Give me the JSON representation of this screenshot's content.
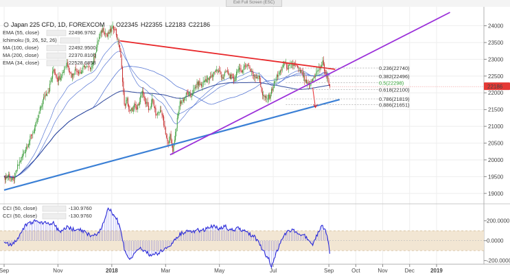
{
  "window": {
    "exit_fullscreen_label": "Exit Full Screen (ESC)"
  },
  "header": {
    "symbol": "Japan 225 CFD, 1D, FOREXCOM",
    "ohlc": [
      {
        "key": "O",
        "value": "22345"
      },
      {
        "key": "H",
        "value": "22355"
      },
      {
        "key": "L",
        "value": "22183"
      },
      {
        "key": "C",
        "value": "22186"
      }
    ]
  },
  "indicators": [
    {
      "label": "EMA (55, close)",
      "value": "22496.9762",
      "color": "#3a5fcd"
    },
    {
      "label": "Ichimoku (9, 26, 52, 26)",
      "value": "",
      "color": "#8a8a8a"
    },
    {
      "label": "MA (100, close)",
      "value": "22492.9500",
      "color": "#3a5fcd"
    },
    {
      "label": "MA (200, close)",
      "value": "22370.8100",
      "color": "#1f3a93"
    },
    {
      "label": "EMA (34, close)",
      "value": "22528.6858",
      "color": "#3a5fcd"
    }
  ],
  "cci_legend": [
    {
      "label": "CCI (50, close)",
      "value": "-130.9760"
    },
    {
      "label": "CCI (50, close)",
      "value": "-130.9760"
    }
  ],
  "last_price_label": "22186",
  "colors": {
    "up": "#3d9e3d",
    "down": "#c62828",
    "downtrend_line": "#e8272a",
    "channel_line": "#9b30d9",
    "support_line": "#3a7fd5",
    "ma_line": "#3a5fcd",
    "cci_line": "#2b2bd9",
    "cci_band": "#f2e6d3",
    "price_badge": "#e53935"
  },
  "chart_data": {
    "type": "line",
    "title": "Japan 225 CFD, 1D, FOREXCOM",
    "x_axis": {
      "tick_labels": [
        "Sep",
        "Nov",
        "2018",
        "Mar",
        "May",
        "Jul",
        "Sep",
        "Oct",
        "Nov",
        "Dec",
        "2019"
      ],
      "tick_index": [
        0,
        60,
        120,
        180,
        240,
        300,
        362,
        392,
        422,
        452,
        482
      ]
    },
    "price_axis": {
      "ticks": [
        19000,
        19500,
        20000,
        20500,
        21000,
        21500,
        22000,
        22500,
        23000,
        23500,
        24000
      ],
      "range": [
        18750,
        24400
      ]
    },
    "close_path": [
      [
        0,
        19450
      ],
      [
        5,
        19550
      ],
      [
        10,
        19350
      ],
      [
        15,
        19800
      ],
      [
        20,
        20100
      ],
      [
        25,
        20400
      ],
      [
        30,
        20700
      ],
      [
        35,
        21000
      ],
      [
        40,
        21500
      ],
      [
        45,
        21900
      ],
      [
        50,
        22100
      ],
      [
        55,
        22700
      ],
      [
        60,
        22400
      ],
      [
        65,
        22600
      ],
      [
        70,
        22900
      ],
      [
        75,
        22500
      ],
      [
        80,
        22700
      ],
      [
        85,
        22600
      ],
      [
        90,
        22800
      ],
      [
        95,
        22700
      ],
      [
        100,
        23000
      ],
      [
        105,
        23600
      ],
      [
        110,
        23900
      ],
      [
        115,
        23700
      ],
      [
        120,
        23900
      ],
      [
        123,
        23950
      ],
      [
        126,
        23650
      ],
      [
        129,
        23300
      ],
      [
        132,
        22400
      ],
      [
        134,
        21600
      ],
      [
        137,
        21800
      ],
      [
        140,
        21400
      ],
      [
        145,
        21600
      ],
      [
        148,
        21500
      ],
      [
        151,
        21800
      ],
      [
        154,
        22000
      ],
      [
        158,
        21700
      ],
      [
        162,
        21500
      ],
      [
        165,
        21800
      ],
      [
        170,
        21300
      ],
      [
        175,
        21500
      ],
      [
        179,
        20900
      ],
      [
        182,
        20500
      ],
      [
        185,
        20700
      ],
      [
        188,
        20300
      ],
      [
        192,
        21000
      ],
      [
        196,
        21700
      ],
      [
        200,
        21800
      ],
      [
        204,
        22000
      ],
      [
        208,
        21900
      ],
      [
        212,
        22100
      ],
      [
        216,
        22300
      ],
      [
        220,
        22200
      ],
      [
        224,
        22400
      ],
      [
        228,
        22400
      ],
      [
        232,
        22500
      ],
      [
        236,
        22700
      ],
      [
        240,
        22600
      ],
      [
        244,
        22450
      ],
      [
        248,
        22650
      ],
      [
        252,
        22500
      ],
      [
        256,
        22350
      ],
      [
        260,
        22700
      ],
      [
        264,
        22650
      ],
      [
        268,
        22800
      ],
      [
        272,
        22850
      ],
      [
        276,
        22600
      ],
      [
        280,
        22500
      ],
      [
        284,
        22450
      ],
      [
        288,
        21950
      ],
      [
        292,
        21800
      ],
      [
        296,
        21900
      ],
      [
        300,
        22200
      ],
      [
        304,
        22500
      ],
      [
        308,
        22600
      ],
      [
        312,
        22900
      ],
      [
        316,
        22750
      ],
      [
        320,
        22800
      ],
      [
        324,
        22850
      ],
      [
        328,
        22700
      ],
      [
        332,
        22600
      ],
      [
        336,
        22300
      ],
      [
        340,
        22200
      ],
      [
        344,
        22400
      ],
      [
        348,
        22600
      ],
      [
        352,
        22750
      ],
      [
        355,
        22900
      ],
      [
        357,
        22700
      ],
      [
        359,
        22500
      ],
      [
        361,
        22400
      ],
      [
        363,
        22186
      ]
    ],
    "downtrend_line": {
      "from": [
        129,
        23550
      ],
      "to": [
        369,
        22700
      ]
    },
    "support_line": {
      "from": [
        0,
        19100
      ],
      "to": [
        374,
        21800
      ]
    },
    "rising_channel_line": {
      "from": [
        185,
        20150
      ],
      "to": [
        497,
        24400
      ]
    },
    "fib_retracement": [
      {
        "ratio": "0.236",
        "price": 22740
      },
      {
        "ratio": "0.382",
        "price": 22496
      },
      {
        "ratio": "0.5",
        "price": 22298
      },
      {
        "ratio": "0.618",
        "price": 22100
      },
      {
        "ratio": "0.786",
        "price": 21819
      },
      {
        "ratio": "0.886",
        "price": 21651
      }
    ],
    "last_price": 22186,
    "cci": {
      "name": "CCI (50, close)",
      "ticks": [
        200,
        0,
        -200
      ],
      "tick_labels": [
        "200.0000",
        "0.0000",
        "-200.0000"
      ],
      "band": [
        100,
        -100
      ],
      "range": [
        -230,
        350
      ],
      "path": [
        [
          0,
          0
        ],
        [
          8,
          -50
        ],
        [
          15,
          20
        ],
        [
          20,
          110
        ],
        [
          25,
          160
        ],
        [
          30,
          180
        ],
        [
          35,
          200
        ],
        [
          40,
          170
        ],
        [
          45,
          190
        ],
        [
          50,
          160
        ],
        [
          55,
          180
        ],
        [
          60,
          110
        ],
        [
          65,
          90
        ],
        [
          70,
          140
        ],
        [
          75,
          120
        ],
        [
          80,
          100
        ],
        [
          85,
          110
        ],
        [
          90,
          90
        ],
        [
          95,
          60
        ],
        [
          100,
          50
        ],
        [
          105,
          80
        ],
        [
          110,
          160
        ],
        [
          113,
          240
        ],
        [
          116,
          330
        ],
        [
          119,
          300
        ],
        [
          122,
          250
        ],
        [
          125,
          230
        ],
        [
          128,
          160
        ],
        [
          131,
          60
        ],
        [
          134,
          -80
        ],
        [
          137,
          -140
        ],
        [
          140,
          -200
        ],
        [
          143,
          -150
        ],
        [
          146,
          -120
        ],
        [
          150,
          -80
        ],
        [
          154,
          -90
        ],
        [
          158,
          -100
        ],
        [
          162,
          -150
        ],
        [
          166,
          -120
        ],
        [
          170,
          -140
        ],
        [
          175,
          -100
        ],
        [
          180,
          -80
        ],
        [
          185,
          -70
        ],
        [
          190,
          10
        ],
        [
          195,
          60
        ],
        [
          200,
          80
        ],
        [
          205,
          100
        ],
        [
          210,
          80
        ],
        [
          215,
          110
        ],
        [
          220,
          90
        ],
        [
          225,
          120
        ],
        [
          230,
          150
        ],
        [
          235,
          140
        ],
        [
          240,
          110
        ],
        [
          245,
          150
        ],
        [
          250,
          120
        ],
        [
          255,
          100
        ],
        [
          260,
          130
        ],
        [
          265,
          100
        ],
        [
          270,
          90
        ],
        [
          275,
          60
        ],
        [
          280,
          30
        ],
        [
          285,
          -40
        ],
        [
          290,
          -120
        ],
        [
          295,
          -190
        ],
        [
          298,
          -250
        ],
        [
          302,
          -160
        ],
        [
          306,
          -60
        ],
        [
          310,
          20
        ],
        [
          315,
          80
        ],
        [
          320,
          110
        ],
        [
          325,
          90
        ],
        [
          330,
          70
        ],
        [
          335,
          60
        ],
        [
          340,
          -20
        ],
        [
          344,
          -40
        ],
        [
          348,
          40
        ],
        [
          352,
          120
        ],
        [
          355,
          150
        ],
        [
          358,
          100
        ],
        [
          361,
          20
        ],
        [
          363,
          -131
        ]
      ]
    }
  }
}
